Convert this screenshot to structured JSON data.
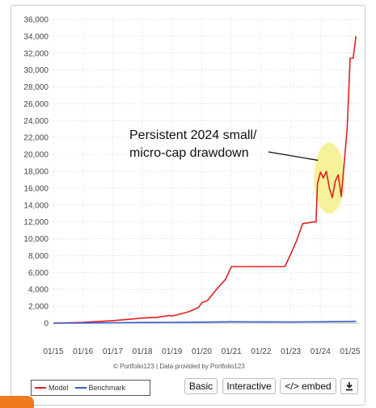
{
  "chart_data": {
    "type": "line",
    "title": "",
    "xlabel": "",
    "ylabel": "",
    "ylim": [
      0,
      36000
    ],
    "yticks": [
      0,
      2000,
      4000,
      6000,
      8000,
      10000,
      12000,
      14000,
      16000,
      18000,
      20000,
      22000,
      24000,
      26000,
      28000,
      30000,
      32000,
      34000,
      36000
    ],
    "ytick_labels": [
      "0",
      "2,000",
      "4,000",
      "6,000",
      "8,000",
      "10,000",
      "12,000",
      "14,000",
      "16,000",
      "18,000",
      "20,000",
      "22,000",
      "24,000",
      "26,000",
      "28,000",
      "30,000",
      "32,000",
      "34,000",
      "36,000"
    ],
    "xlim": [
      2015.0,
      2025.3
    ],
    "xticks": [
      2015,
      2016,
      2017,
      2018,
      2019,
      2020,
      2021,
      2022,
      2023,
      2024,
      2025
    ],
    "xtick_labels": [
      "01/15",
      "01/16",
      "01/17",
      "01/18",
      "01/19",
      "01/20",
      "01/21",
      "01/22",
      "01/23",
      "01/24",
      "01/25"
    ],
    "grid": true,
    "legend_position": "bottom-left",
    "series": [
      {
        "name": "Model",
        "color": "#e02020",
        "x": [
          2015.0,
          2015.5,
          2016.0,
          2016.5,
          2017.0,
          2017.5,
          2018.0,
          2018.5,
          2018.9,
          2019.0,
          2019.3,
          2019.6,
          2019.9,
          2020.0,
          2020.2,
          2020.5,
          2020.8,
          2021.0,
          2021.2,
          2021.5,
          2021.8,
          2022.0,
          2022.5,
          2022.8,
          2023.0,
          2023.2,
          2023.4,
          2023.6,
          2023.75,
          2023.85,
          2023.9,
          2024.0,
          2024.1,
          2024.2,
          2024.3,
          2024.4,
          2024.5,
          2024.6,
          2024.7,
          2024.8,
          2024.9,
          2025.0,
          2025.1,
          2025.2
        ],
        "values": [
          0,
          50,
          100,
          200,
          300,
          450,
          600,
          700,
          900,
          850,
          1100,
          1400,
          1900,
          2400,
          2700,
          4000,
          5200,
          6700,
          6700,
          6700,
          6700,
          6700,
          6700,
          6700,
          8200,
          9800,
          11800,
          11900,
          12000,
          12000,
          16500,
          17900,
          17200,
          18000,
          16000,
          14900,
          16800,
          17600,
          15000,
          19000,
          23000,
          31400,
          31400,
          34000
        ]
      },
      {
        "name": "Benchmark",
        "color": "#3a5bd0",
        "x": [
          2015.0,
          2016.0,
          2017.0,
          2018.0,
          2019.0,
          2020.0,
          2021.0,
          2022.0,
          2023.0,
          2024.0,
          2025.0,
          2025.2
        ],
        "values": [
          0,
          20,
          50,
          80,
          100,
          120,
          160,
          150,
          140,
          160,
          200,
          220
        ]
      }
    ],
    "annotation": {
      "line1": "Persistent 2024 small/",
      "line2": "micro-cap drawdown"
    }
  },
  "credit": "© Portfolio123 | Data provided by Portfolio123",
  "legend": {
    "model_label": "Model",
    "benchmark_label": "Benchmark"
  },
  "buttons": {
    "basic": "Basic",
    "interactive": "Interactive",
    "embed": "</> embed",
    "download_icon": "download-icon"
  },
  "colors": {
    "highlight": "#f4f08a",
    "model": "#e02020",
    "benchmark": "#3a5bd0",
    "accent_tab": "#f07a1d"
  }
}
